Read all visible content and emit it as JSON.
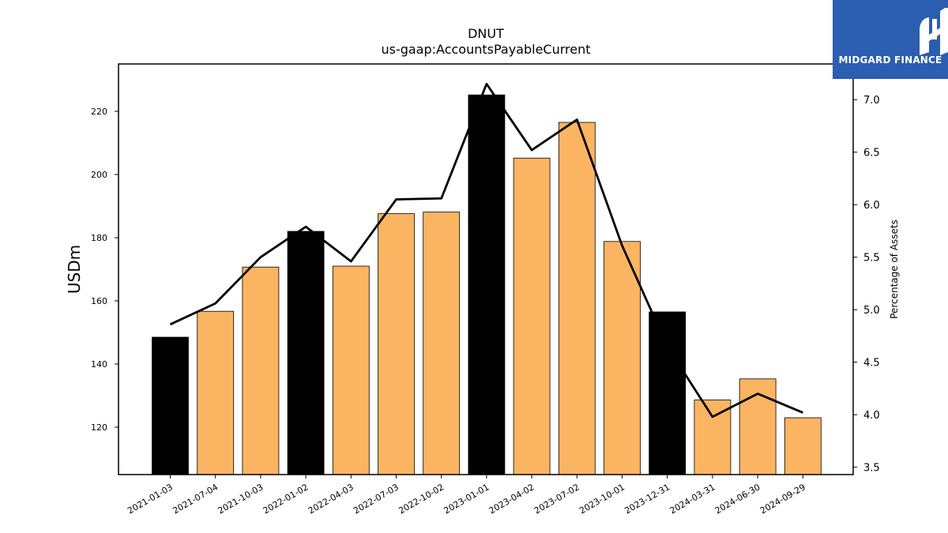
{
  "chart_data": {
    "type": "bar",
    "title": "DNUT",
    "subtitle": "us-gaap:AccountsPayableCurrent",
    "ylabel": "USDm",
    "y2label": "Percentage of Assets",
    "categories": [
      "2021-01-03",
      "2021-07-04",
      "2021-10-03",
      "2022-01-02",
      "2022-04-03",
      "2022-07-03",
      "2022-10-02",
      "2023-01-01",
      "2023-04-02",
      "2023-07-02",
      "2023-10-01",
      "2023-12-31",
      "2024-03-31",
      "2024-06-30",
      "2024-09-29"
    ],
    "series": [
      {
        "type": "bar",
        "values": [
          148.5,
          156.7,
          170.7,
          182.0,
          171.0,
          187.6,
          188.1,
          225.2,
          205.2,
          216.5,
          178.8,
          156.5,
          128.6,
          135.3,
          123.0
        ],
        "highlight": [
          true,
          false,
          false,
          true,
          false,
          false,
          false,
          true,
          false,
          false,
          false,
          true,
          false,
          false,
          false
        ]
      },
      {
        "type": "line",
        "axis": "right",
        "values": [
          4.86,
          5.06,
          5.5,
          5.79,
          5.46,
          6.05,
          6.06,
          7.15,
          6.52,
          6.81,
          5.61,
          4.65,
          3.98,
          4.2,
          4.02
        ]
      }
    ],
    "ylim": [
      105,
      235
    ],
    "yticks": [
      120,
      140,
      160,
      180,
      200,
      220
    ],
    "y2lim": [
      3.43,
      7.34
    ],
    "y2ticks": [
      3.5,
      4.0,
      4.5,
      5.0,
      5.5,
      6.0,
      6.5,
      7.0
    ],
    "colors": {
      "bar": "#fbb462",
      "highlight": "#000000",
      "line": "#000000"
    }
  },
  "logo": {
    "text": "MIDGARD FINANCE",
    "background": "#2b5db0"
  }
}
